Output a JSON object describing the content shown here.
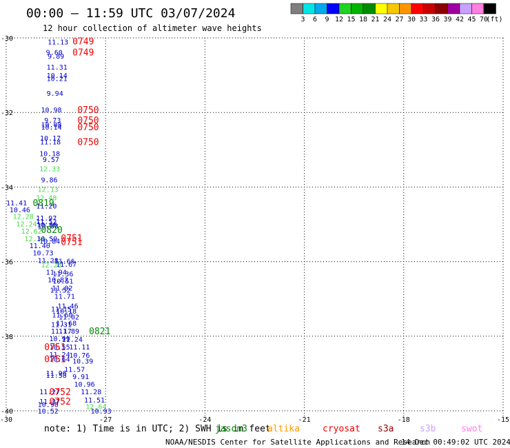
{
  "chart_data": {
    "type": "scatter",
    "title": "00:00 – 11:59 UTC 03/07/2024",
    "subtitle": "12 hour collection of altimeter wave heights",
    "xlim": [
      -30,
      -15
    ],
    "ylim": [
      -40,
      -30
    ],
    "x_ticks": [
      "-30",
      "-27",
      "-24",
      "-21",
      "-18",
      "-15"
    ],
    "y_ticks": [
      "-30",
      "-32",
      "-34",
      "-36",
      "-38",
      "-40"
    ],
    "grid": "dotted",
    "scale": {
      "labels": [
        "3",
        "6",
        "9",
        "12",
        "15",
        "18",
        "21",
        "24",
        "27",
        "30",
        "33",
        "36",
        "39",
        "42",
        "45",
        "70",
        "(ft)"
      ],
      "colors": [
        "#7f7f7f",
        "#00e5e5",
        "#00a8f0",
        "#0000ff",
        "#22d322",
        "#00b400",
        "#008c00",
        "#ffff00",
        "#f5c800",
        "#ff9600",
        "#ff0000",
        "#c80000",
        "#8c0000",
        "#a000a0",
        "#c8a0ff",
        "#ff80e0",
        "#000000"
      ]
    },
    "wave_heights": [
      {
        "lon": -28.75,
        "lat": -30.1,
        "v": "11.13",
        "c": "#0000cc"
      },
      {
        "lon": -28.8,
        "lat": -30.38,
        "v": "9.60",
        "c": "#0000cc"
      },
      {
        "lon": -28.75,
        "lat": -30.48,
        "v": "9.89",
        "c": "#0000cc"
      },
      {
        "lon": -28.78,
        "lat": -30.78,
        "v": "11.31",
        "c": "#0000cc"
      },
      {
        "lon": -28.78,
        "lat": -31.0,
        "v": "10.14",
        "c": "#0000cc"
      },
      {
        "lon": -28.78,
        "lat": -31.08,
        "v": "10.21",
        "c": "#0000cc"
      },
      {
        "lon": -28.78,
        "lat": -31.48,
        "v": "9.94",
        "c": "#0000cc"
      },
      {
        "lon": -28.95,
        "lat": -31.92,
        "v": "10.98",
        "c": "#0000cc"
      },
      {
        "lon": -28.85,
        "lat": -32.2,
        "v": "9.73",
        "c": "#0000cc"
      },
      {
        "lon": -28.95,
        "lat": -32.32,
        "v": "10.08",
        "c": "#0000cc"
      },
      {
        "lon": -28.95,
        "lat": -32.38,
        "v": "10.14",
        "c": "#0000cc"
      },
      {
        "lon": -28.98,
        "lat": -32.68,
        "v": "10.17",
        "c": "#0000cc"
      },
      {
        "lon": -28.98,
        "lat": -32.78,
        "v": "11.18",
        "c": "#0000cc"
      },
      {
        "lon": -29.0,
        "lat": -33.1,
        "v": "10.18",
        "c": "#0000cc"
      },
      {
        "lon": -28.9,
        "lat": -33.25,
        "v": "9.57",
        "c": "#0000cc"
      },
      {
        "lon": -29.0,
        "lat": -33.5,
        "v": "12.33",
        "c": "#44dd44"
      },
      {
        "lon": -28.95,
        "lat": -33.8,
        "v": "9.86",
        "c": "#0000cc"
      },
      {
        "lon": -29.05,
        "lat": -34.06,
        "v": "12.13",
        "c": "#44dd44"
      },
      {
        "lon": -29.1,
        "lat": -34.28,
        "v": "12.48",
        "c": "#44dd44"
      },
      {
        "lon": -29.1,
        "lat": -34.5,
        "v": "11.20",
        "c": "#0000cc"
      },
      {
        "lon": -30.0,
        "lat": -34.42,
        "v": "11.41",
        "c": "#0000cc"
      },
      {
        "lon": -29.9,
        "lat": -34.6,
        "v": "10.46",
        "c": "#0000cc"
      },
      {
        "lon": -29.8,
        "lat": -34.78,
        "v": "12.28",
        "c": "#44dd44"
      },
      {
        "lon": -29.7,
        "lat": -34.98,
        "v": "12.24",
        "c": "#44dd44"
      },
      {
        "lon": -29.55,
        "lat": -35.18,
        "v": "12.62",
        "c": "#44dd44"
      },
      {
        "lon": -29.45,
        "lat": -35.38,
        "v": "12.34",
        "c": "#44dd44"
      },
      {
        "lon": -29.3,
        "lat": -35.56,
        "v": "11.40",
        "c": "#0000cc"
      },
      {
        "lon": -29.2,
        "lat": -35.76,
        "v": "10.73",
        "c": "#0000cc"
      },
      {
        "lon": -29.05,
        "lat": -35.96,
        "v": "11.28",
        "c": "#0000cc"
      },
      {
        "lon": -29.1,
        "lat": -34.82,
        "v": "11.97",
        "c": "#0000cc"
      },
      {
        "lon": -29.1,
        "lat": -34.92,
        "v": "11.52",
        "c": "#0000cc"
      },
      {
        "lon": -29.08,
        "lat": -35.0,
        "v": "10.66",
        "c": "#0000cc"
      },
      {
        "lon": -29.05,
        "lat": -35.04,
        "v": "10.88",
        "c": "#0000cc"
      },
      {
        "lon": -29.08,
        "lat": -35.38,
        "v": "10.59",
        "c": "#0000cc"
      },
      {
        "lon": -29.0,
        "lat": -35.44,
        "v": "10.84",
        "c": "#0000cc"
      },
      {
        "lon": -28.55,
        "lat": -35.98,
        "v": "11.66",
        "c": "#0000cc"
      },
      {
        "lon": -28.5,
        "lat": -36.06,
        "v": "11.67",
        "c": "#0000cc"
      },
      {
        "lon": -28.95,
        "lat": -36.08,
        "v": "12.23",
        "c": "#44dd44"
      },
      {
        "lon": -28.8,
        "lat": -36.28,
        "v": "11.94",
        "c": "#0000cc"
      },
      {
        "lon": -28.6,
        "lat": -36.32,
        "v": "11.36",
        "c": "#0000cc"
      },
      {
        "lon": -28.75,
        "lat": -36.48,
        "v": "10.82",
        "c": "#0000cc"
      },
      {
        "lon": -28.6,
        "lat": -36.52,
        "v": "10.51",
        "c": "#0000cc"
      },
      {
        "lon": -28.62,
        "lat": -36.7,
        "v": "11.02",
        "c": "#0000cc"
      },
      {
        "lon": -28.68,
        "lat": -36.76,
        "v": "11.52",
        "c": "#0000cc"
      },
      {
        "lon": -28.55,
        "lat": -36.92,
        "v": "11.71",
        "c": "#0000cc"
      },
      {
        "lon": -28.45,
        "lat": -37.18,
        "v": "11.46",
        "c": "#0000cc"
      },
      {
        "lon": -28.65,
        "lat": -37.26,
        "v": "11.15",
        "c": "#0000cc"
      },
      {
        "lon": -28.5,
        "lat": -37.32,
        "v": "10.18",
        "c": "#0000cc"
      },
      {
        "lon": -28.62,
        "lat": -37.42,
        "v": "11.60",
        "c": "#0000cc"
      },
      {
        "lon": -28.42,
        "lat": -37.48,
        "v": "11.02",
        "c": "#0000cc"
      },
      {
        "lon": -28.5,
        "lat": -37.64,
        "v": "11.68",
        "c": "#0000cc"
      },
      {
        "lon": -28.65,
        "lat": -37.68,
        "v": "11.31",
        "c": "#0000cc"
      },
      {
        "lon": -28.65,
        "lat": -37.86,
        "v": "11.17",
        "c": "#0000cc"
      },
      {
        "lon": -28.42,
        "lat": -37.86,
        "v": "11.89",
        "c": "#0000cc"
      },
      {
        "lon": -28.7,
        "lat": -38.06,
        "v": "10.99",
        "c": "#0000cc"
      },
      {
        "lon": -28.32,
        "lat": -38.08,
        "v": "11.24",
        "c": "#0000cc"
      },
      {
        "lon": -28.7,
        "lat": -38.28,
        "v": "10.55",
        "c": "#0000cc"
      },
      {
        "lon": -28.1,
        "lat": -38.28,
        "v": "11.11",
        "c": "#0000cc"
      },
      {
        "lon": -28.7,
        "lat": -38.48,
        "v": "11.24",
        "c": "#0000cc"
      },
      {
        "lon": -28.1,
        "lat": -38.5,
        "v": "10.76",
        "c": "#0000cc"
      },
      {
        "lon": -28.7,
        "lat": -38.6,
        "v": "10.64",
        "c": "#0000cc"
      },
      {
        "lon": -28.0,
        "lat": -38.66,
        "v": "10.39",
        "c": "#0000cc"
      },
      {
        "lon": -28.25,
        "lat": -38.88,
        "v": "11.57",
        "c": "#0000cc"
      },
      {
        "lon": -28.8,
        "lat": -38.98,
        "v": "11.96",
        "c": "#0000cc"
      },
      {
        "lon": -28.8,
        "lat": -39.04,
        "v": "11.58",
        "c": "#0000cc"
      },
      {
        "lon": -28.0,
        "lat": -39.08,
        "v": "9.91",
        "c": "#0000cc"
      },
      {
        "lon": -27.95,
        "lat": -39.28,
        "v": "10.96",
        "c": "#0000cc"
      },
      {
        "lon": -29.0,
        "lat": -39.48,
        "v": "11.27",
        "c": "#0000cc"
      },
      {
        "lon": -27.75,
        "lat": -39.48,
        "v": "11.28",
        "c": "#0000cc"
      },
      {
        "lon": -27.65,
        "lat": -39.7,
        "v": "11.51",
        "c": "#0000cc"
      },
      {
        "lon": -29.0,
        "lat": -39.74,
        "v": "11.37",
        "c": "#0000cc"
      },
      {
        "lon": -29.05,
        "lat": -39.82,
        "v": "10.90",
        "c": "#0000cc"
      },
      {
        "lon": -27.6,
        "lat": -39.88,
        "v": "12.64",
        "c": "#44dd44"
      },
      {
        "lon": -29.05,
        "lat": -40.0,
        "v": "10.52",
        "c": "#0000cc"
      },
      {
        "lon": -27.45,
        "lat": -40.0,
        "v": "10.93",
        "c": "#0000cc"
      }
    ],
    "pass_times": [
      {
        "lon": -28.0,
        "lat": -30.08,
        "t": "0749",
        "c": "#ee0000"
      },
      {
        "lon": -28.0,
        "lat": -30.38,
        "t": "0749",
        "c": "#ee0000"
      },
      {
        "lon": -27.85,
        "lat": -31.92,
        "t": "0750",
        "c": "#ee0000"
      },
      {
        "lon": -27.85,
        "lat": -32.2,
        "t": "0750",
        "c": "#ee0000"
      },
      {
        "lon": -27.85,
        "lat": -32.38,
        "t": "0750",
        "c": "#ee0000"
      },
      {
        "lon": -27.85,
        "lat": -32.78,
        "t": "0750",
        "c": "#ee0000"
      },
      {
        "lon": -29.2,
        "lat": -34.42,
        "t": "0819",
        "c": "#008800"
      },
      {
        "lon": -28.95,
        "lat": -35.14,
        "t": "0820",
        "c": "#008800"
      },
      {
        "lon": -28.35,
        "lat": -35.36,
        "t": "0751",
        "c": "#ee0000"
      },
      {
        "lon": -28.35,
        "lat": -35.46,
        "t": "0751",
        "c": "#ee0000"
      },
      {
        "lon": -27.5,
        "lat": -37.86,
        "t": "0821",
        "c": "#008800"
      },
      {
        "lon": -28.85,
        "lat": -38.28,
        "t": "0751",
        "c": "#ee0000"
      },
      {
        "lon": -28.85,
        "lat": -38.6,
        "t": "0751",
        "c": "#ee0000"
      },
      {
        "lon": -28.7,
        "lat": -39.48,
        "t": "0752",
        "c": "#ee0000"
      },
      {
        "lon": -28.7,
        "lat": -39.74,
        "t": "0752",
        "c": "#ee0000"
      }
    ]
  },
  "footer": {
    "note": "note: 1) Time is in UTC; 2) SWH is in feet",
    "satellites": [
      {
        "name": "jason3",
        "color": "#008800"
      },
      {
        "name": "altika",
        "color": "#ff9900"
      },
      {
        "name": "cryosat",
        "color": "#ee0000"
      },
      {
        "name": "s3a",
        "color": "#990000"
      },
      {
        "name": "s3b",
        "color": "#c8a0ff"
      },
      {
        "name": "swot",
        "color": "#ff80e0"
      }
    ],
    "credit": "NOAA/NESDIS Center for Satellite Applications and Research",
    "timestamp": "14 Dec 00:49:02 UTC 2024"
  }
}
